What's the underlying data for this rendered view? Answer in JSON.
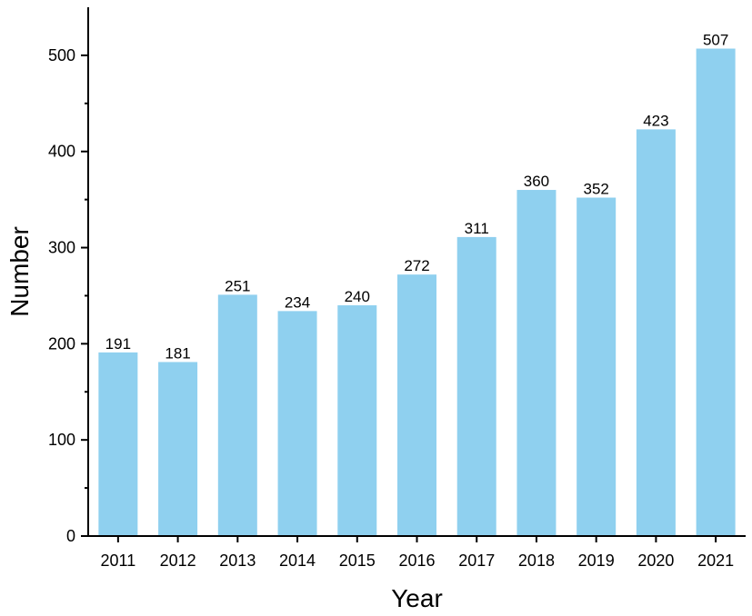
{
  "chart_data": {
    "type": "bar",
    "xlabel": "Year",
    "ylabel": "Number",
    "categories": [
      "2011",
      "2012",
      "2013",
      "2014",
      "2015",
      "2016",
      "2017",
      "2018",
      "2019",
      "2020",
      "2021"
    ],
    "values": [
      191,
      181,
      251,
      234,
      240,
      272,
      311,
      360,
      352,
      423,
      507
    ],
    "ylim": [
      0,
      550
    ],
    "yticks": [
      0,
      100,
      200,
      300,
      400,
      500
    ],
    "grid": false,
    "legend": "none",
    "colors": {
      "bar": "#8fd0ef",
      "axis": "#000000"
    }
  }
}
